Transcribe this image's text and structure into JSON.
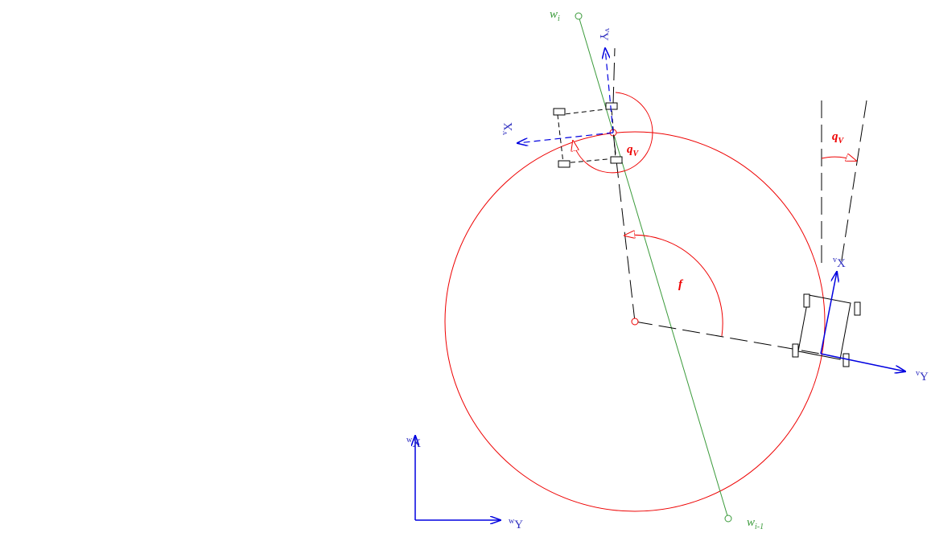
{
  "labels": {
    "waypoint_current": {
      "base": "w",
      "sub": "i"
    },
    "waypoint_previous": {
      "base": "w",
      "sub": "i-1"
    },
    "ghost_vehicle_y": {
      "sup": "v",
      "base": "Y"
    },
    "ghost_vehicle_x": {
      "sup": "v",
      "base": "X"
    },
    "ghost_heading": {
      "base": "q",
      "sub": "V"
    },
    "heading": {
      "base": "q",
      "sub": "V"
    },
    "phase": {
      "base": "f"
    },
    "vehicle_x": {
      "sup": "v",
      "base": "X"
    },
    "vehicle_y": {
      "sup": "v",
      "base": "Y"
    },
    "world_x": {
      "sup": "w",
      "base": "X"
    },
    "world_y": {
      "sup": "w",
      "base": "Y"
    }
  }
}
